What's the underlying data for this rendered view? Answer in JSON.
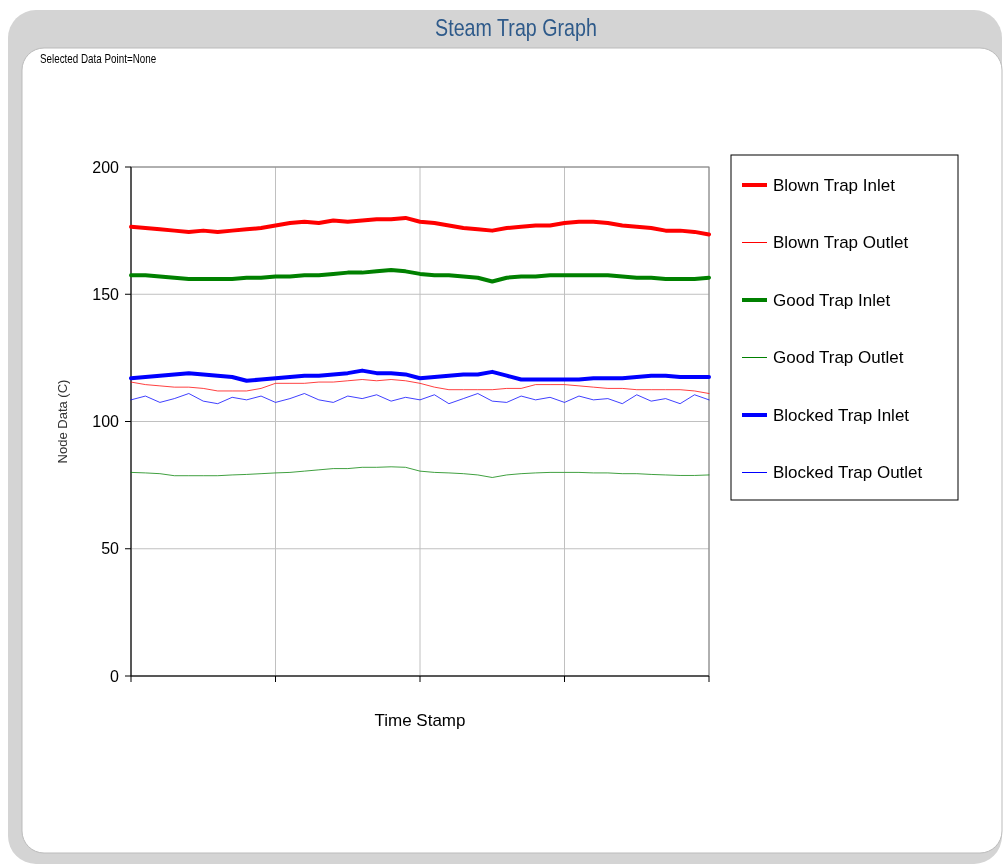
{
  "chart_data": {
    "type": "line",
    "title": "Steam Trap Graph",
    "annotations": [
      "Selected Data Point=None"
    ],
    "xlabel": "Time Stamp",
    "ylabel": "Node Data (C)",
    "categories": [
      null,
      null,
      null,
      null,
      null,
      null,
      null,
      null,
      null,
      null,
      null,
      null,
      null,
      null,
      null,
      null,
      null,
      null,
      null,
      null,
      null,
      null,
      null,
      null,
      null,
      null,
      null,
      null,
      null,
      null,
      null,
      null,
      null,
      null,
      null,
      null,
      null,
      null,
      null,
      null,
      null
    ],
    "ylim": [
      0,
      200
    ],
    "yticks": [
      0,
      50,
      100,
      150,
      200
    ],
    "grid": true,
    "legend": "right",
    "marker": "none",
    "series": [
      {
        "name": "Blown Trap Inlet",
        "color": "#ff0000",
        "values": [
          176.5,
          176,
          175.5,
          175,
          174.5,
          175,
          174.5,
          175,
          175.5,
          176,
          177,
          178,
          178.5,
          178,
          179,
          178.5,
          179,
          179.5,
          179.5,
          180,
          178.5,
          178,
          177,
          176,
          175.5,
          175,
          176,
          176.5,
          177,
          177,
          178,
          178.5,
          178.5,
          178,
          177,
          176.5,
          176,
          175,
          175,
          174.5,
          173.5
        ]
      },
      {
        "name": "Blown Trap Outlet",
        "color": "#ff0000",
        "values": [
          115.5,
          114.5,
          114,
          113.5,
          113.5,
          113,
          112,
          112,
          112,
          113,
          115,
          115,
          115,
          115.5,
          115.5,
          116,
          116.5,
          116,
          116.5,
          116,
          115,
          113.5,
          112.5,
          112.5,
          112.5,
          112.5,
          113,
          113,
          114.5,
          114.5,
          114.5,
          114,
          113.5,
          113,
          113,
          112.5,
          112.5,
          112.5,
          112.5,
          112,
          111
        ]
      },
      {
        "name": "Good Trap Inlet",
        "color": "#008000",
        "values": [
          157.5,
          157.5,
          157,
          156.5,
          156,
          156,
          156,
          156,
          156.5,
          156.5,
          157,
          157,
          157.5,
          157.5,
          158,
          158.5,
          158.5,
          159,
          159.5,
          159,
          158,
          157.5,
          157.5,
          157,
          156.5,
          155,
          156.5,
          157,
          157,
          157.5,
          157.5,
          157.5,
          157.5,
          157.5,
          157,
          156.5,
          156.5,
          156,
          156,
          156,
          156.5
        ]
      },
      {
        "name": "Good Trap Outlet",
        "color": "#008000",
        "values": [
          80,
          79.8,
          79.5,
          78.7,
          78.7,
          78.7,
          78.7,
          79,
          79.2,
          79.5,
          79.8,
          80,
          80.5,
          81,
          81.5,
          81.5,
          82,
          82,
          82.2,
          82,
          80.5,
          80,
          79.8,
          79.5,
          79,
          78,
          79,
          79.5,
          79.8,
          80,
          80,
          80,
          79.8,
          79.8,
          79.5,
          79.5,
          79.2,
          79,
          78.8,
          78.8,
          79
        ]
      },
      {
        "name": "Blocked Trap Inlet",
        "color": "#0000ff",
        "values": [
          117,
          117.5,
          118,
          118.5,
          119,
          118.5,
          118,
          117.5,
          116,
          116.5,
          117,
          117.5,
          118,
          118,
          118.5,
          119,
          120,
          119,
          119,
          118.5,
          117,
          117.5,
          118,
          118.5,
          118.5,
          119.5,
          118,
          116.5,
          116.5,
          116.5,
          116.5,
          116.5,
          117,
          117,
          117,
          117.5,
          118,
          118,
          117.5,
          117.5,
          117.5
        ]
      },
      {
        "name": "Blocked Trap Outlet",
        "color": "#0000ff",
        "values": [
          108.5,
          110,
          107.5,
          109,
          111,
          108,
          107,
          109.5,
          108.5,
          110,
          107.5,
          109,
          111,
          108.5,
          107.5,
          110,
          109,
          110.5,
          108,
          109.5,
          108.5,
          110.5,
          107,
          109,
          111,
          108,
          107.5,
          110,
          108.5,
          109.5,
          107.5,
          110,
          108.5,
          109,
          107,
          110.5,
          108,
          109,
          107,
          110.5,
          108.5
        ]
      }
    ]
  }
}
